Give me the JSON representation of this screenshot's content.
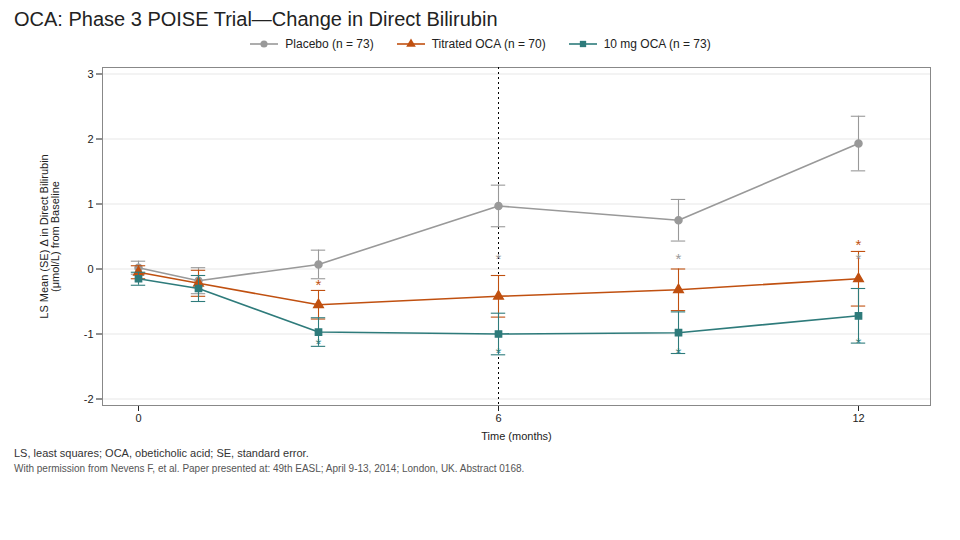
{
  "chart_data": {
    "type": "line",
    "title": "OCA: Phase 3 POISE Trial—Change in Direct Bilirubin",
    "x_label": "Time (months)",
    "y_label": "LS Mean (SE) Δ in Direct Bilirubin\n(μmol/L) from Baseline",
    "xlim": [
      -0.6,
      13.2
    ],
    "xticks": [
      0,
      6,
      12
    ],
    "ylim": [
      -2.1,
      3.1
    ],
    "yticks": [
      -2,
      -1,
      0,
      1,
      2,
      3
    ],
    "grid": true,
    "legend": "top",
    "x": [
      0,
      1,
      3,
      6,
      9,
      12
    ],
    "series": [
      {
        "name": "Placebo (n = 73)",
        "color": "#999999",
        "marker": "circle",
        "line_style": "solid",
        "values": [
          0.02,
          -0.18,
          0.07,
          0.97,
          0.75,
          1.93
        ],
        "yerr": [
          0.1,
          0.2,
          0.22,
          0.32,
          0.32,
          0.42
        ]
      },
      {
        "name": "Titrated OCA (n = 70)",
        "color": "#c05010",
        "marker": "triangle",
        "line_style": "solid",
        "values": [
          -0.05,
          -0.22,
          -0.55,
          -0.42,
          -0.32,
          -0.15
        ],
        "yerr": [
          0.1,
          0.2,
          0.22,
          0.32,
          0.32,
          0.42
        ]
      },
      {
        "name": "10 mg OCA (n = 73)",
        "color": "#2e7b7b",
        "marker": "square",
        "line_style": "solid",
        "values": [
          -0.15,
          -0.3,
          -0.97,
          -1.0,
          -0.98,
          -0.72
        ],
        "yerr": [
          0.1,
          0.2,
          0.22,
          0.32,
          0.32,
          0.42
        ]
      }
    ],
    "vlines": [
      {
        "x": 6,
        "line_style": "dotted"
      }
    ],
    "annotations": [
      {
        "text": "*",
        "x": 3,
        "y": -0.33,
        "color": "#c05010"
      },
      {
        "text": "*",
        "x": 3,
        "y": -1.23,
        "color": "#2e7b7b"
      },
      {
        "text": "*",
        "x": 6,
        "y": 0.08,
        "color": "#999999"
      },
      {
        "text": "*",
        "x": 6,
        "y": -1.37,
        "color": "#2e7b7b"
      },
      {
        "text": "*",
        "x": 9,
        "y": 0.08,
        "color": "#999999"
      },
      {
        "text": "*",
        "x": 9,
        "y": -1.37,
        "color": "#2e7b7b"
      },
      {
        "text": "*",
        "x": 12,
        "y": 0.08,
        "color": "#999999"
      },
      {
        "text": "*",
        "x": 12,
        "y": 0.3,
        "color": "#c05010"
      },
      {
        "text": "*",
        "x": 12,
        "y": -1.22,
        "color": "#2e7b7b"
      }
    ],
    "footnote": "LS, least squares; OCA, obeticholic acid; SE, standard error.",
    "citation": "With permission from Nevens F, et al. Paper presented at: 49th EASL; April 9-13, 2014; London, UK. Abstract 0168."
  }
}
